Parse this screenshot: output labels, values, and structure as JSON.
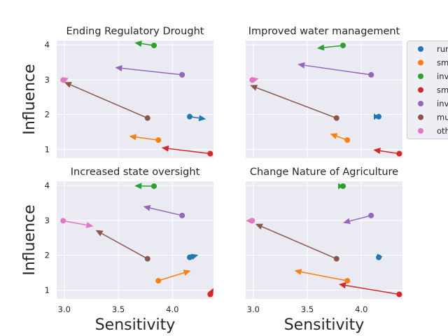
{
  "chart_data": {
    "type": "scatter",
    "xlabel": "Sensitivity",
    "ylabel": "Influence",
    "xlim": [
      2.93,
      4.38
    ],
    "ylim": [
      0.75,
      4.12
    ],
    "xticks": [
      3.0,
      3.5,
      4.0
    ],
    "yticks": [
      1,
      2,
      3,
      4
    ],
    "grid": true,
    "legend_placement": "right",
    "series": [
      {
        "name": "rur",
        "color": "#1f77b4",
        "x": 4.16,
        "y": 1.94
      },
      {
        "name": "sm",
        "color": "#ff7f0e",
        "x": 3.87,
        "y": 1.27
      },
      {
        "name": "inv",
        "color": "#2ca02c",
        "x": 3.83,
        "y": 3.98
      },
      {
        "name": "sm",
        "color": "#d62728",
        "x": 4.35,
        "y": 0.88
      },
      {
        "name": "inv",
        "color": "#9467bd",
        "x": 4.09,
        "y": 3.14
      },
      {
        "name": "mu",
        "color": "#8c564b",
        "x": 3.77,
        "y": 1.9
      },
      {
        "name": "oth",
        "color": "#e377c2",
        "x": 2.99,
        "y": 2.99
      }
    ],
    "panels": [
      {
        "title": "Ending Regulatory Drought",
        "arrows": [
          [
            4.31,
            1.87
          ],
          [
            3.6,
            1.38
          ],
          [
            3.65,
            4.06
          ],
          [
            3.9,
            1.05
          ],
          [
            3.47,
            3.35
          ],
          [
            3.0,
            2.93
          ],
          [
            3.04,
            3.04
          ]
        ]
      },
      {
        "title": "Improved water management",
        "arrows": [
          [
            4.16,
            1.94
          ],
          [
            3.71,
            1.45
          ],
          [
            3.59,
            3.9
          ],
          [
            4.11,
            0.99
          ],
          [
            3.41,
            3.44
          ],
          [
            2.97,
            2.84
          ],
          [
            3.05,
            3.03
          ]
        ]
      },
      {
        "title": "Increased state oversight",
        "arrows": [
          [
            4.24,
            2.01
          ],
          [
            4.17,
            1.56
          ],
          [
            3.65,
            3.99
          ],
          [
            4.38,
            1.06
          ],
          [
            3.73,
            3.4
          ],
          [
            3.29,
            2.72
          ],
          [
            3.27,
            2.83
          ]
        ]
      },
      {
        "title": "Change Nature of Agriculture",
        "arrows": [
          [
            4.15,
            1.88
          ],
          [
            3.38,
            1.56
          ],
          [
            3.83,
            3.98
          ],
          [
            3.79,
            1.17
          ],
          [
            3.83,
            2.93
          ],
          [
            3.02,
            2.9
          ],
          [
            2.93,
            2.99
          ]
        ]
      }
    ]
  }
}
